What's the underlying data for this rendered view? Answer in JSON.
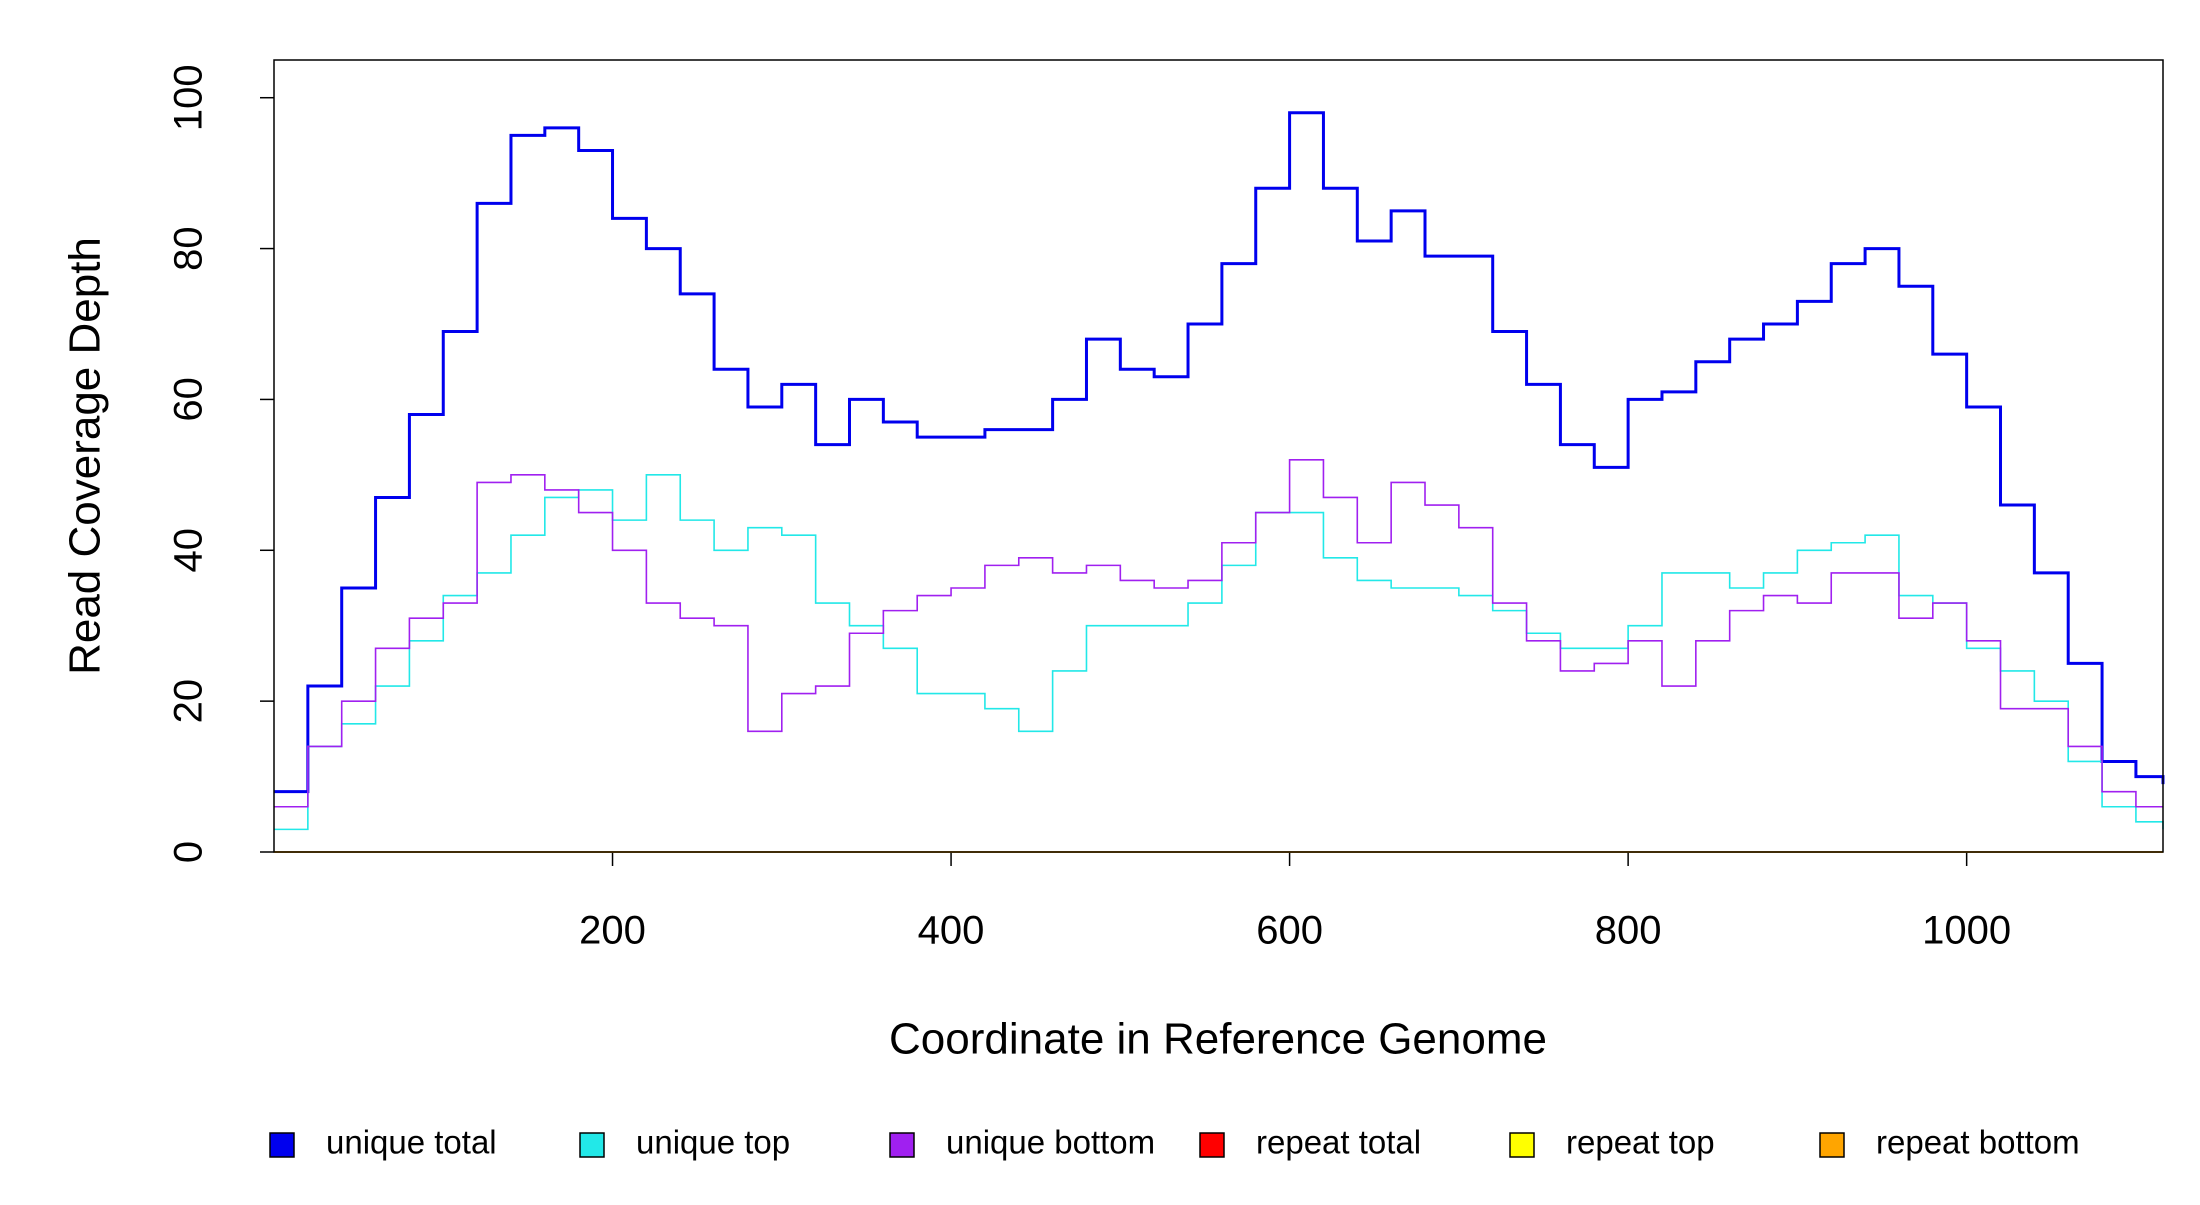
{
  "chart_data": {
    "type": "line",
    "step": true,
    "xlabel": "Coordinate in Reference Genome",
    "ylabel": "Read Coverage Depth",
    "x": [
      0,
      20,
      40,
      60,
      80,
      100,
      120,
      140,
      160,
      180,
      200,
      220,
      240,
      260,
      280,
      300,
      320,
      340,
      360,
      380,
      400,
      420,
      440,
      460,
      480,
      500,
      520,
      540,
      560,
      580,
      600,
      620,
      640,
      660,
      680,
      700,
      720,
      740,
      760,
      780,
      800,
      820,
      840,
      860,
      880,
      900,
      920,
      940,
      960,
      980,
      1000,
      1020,
      1040,
      1060,
      1080,
      1100,
      1116
    ],
    "series": [
      {
        "name": "unique total",
        "color": "#0000ee",
        "width": 3,
        "values": [
          8,
          22,
          35,
          47,
          58,
          69,
          86,
          95,
          96,
          93,
          84,
          80,
          74,
          64,
          59,
          62,
          54,
          60,
          57,
          55,
          55,
          56,
          56,
          60,
          68,
          64,
          63,
          70,
          78,
          88,
          98,
          88,
          81,
          85,
          79,
          79,
          69,
          62,
          54,
          51,
          60,
          61,
          65,
          68,
          70,
          73,
          78,
          80,
          75,
          66,
          59,
          46,
          37,
          25,
          12,
          10,
          9
        ]
      },
      {
        "name": "unique top",
        "color": "#22e8e8",
        "width": 1.6,
        "values": [
          3,
          14,
          17,
          22,
          28,
          34,
          37,
          42,
          47,
          48,
          44,
          50,
          44,
          40,
          43,
          42,
          33,
          30,
          27,
          21,
          21,
          19,
          16,
          24,
          30,
          30,
          30,
          33,
          38,
          45,
          45,
          39,
          36,
          35,
          35,
          34,
          32,
          29,
          27,
          27,
          30,
          37,
          37,
          35,
          37,
          40,
          41,
          42,
          34,
          33,
          27,
          24,
          20,
          12,
          6,
          4,
          3
        ]
      },
      {
        "name": "unique bottom",
        "color": "#a020f0",
        "width": 1.6,
        "values": [
          6,
          14,
          20,
          27,
          31,
          33,
          49,
          50,
          48,
          45,
          40,
          33,
          31,
          30,
          16,
          21,
          22,
          29,
          32,
          34,
          35,
          38,
          39,
          37,
          38,
          36,
          35,
          36,
          41,
          45,
          52,
          47,
          41,
          49,
          46,
          43,
          33,
          28,
          24,
          25,
          28,
          22,
          28,
          32,
          34,
          33,
          37,
          37,
          31,
          33,
          28,
          19,
          19,
          14,
          8,
          6,
          6
        ]
      },
      {
        "name": "repeat total",
        "color": "#ff0000",
        "width": 1.6,
        "values": [
          0,
          0,
          0,
          0,
          0,
          0,
          0,
          0,
          0,
          0,
          0,
          0,
          0,
          0,
          0,
          0,
          0,
          0,
          0,
          0,
          0,
          0,
          0,
          0,
          0,
          0,
          0,
          0,
          0,
          0,
          0,
          0,
          0,
          0,
          0,
          0,
          0,
          0,
          0,
          0,
          0,
          0,
          0,
          0,
          0,
          0,
          0,
          0,
          0,
          0,
          0,
          0,
          0,
          0,
          0,
          0,
          0
        ]
      },
      {
        "name": "repeat top",
        "color": "#ffff00",
        "width": 1.6,
        "values": [
          0,
          0,
          0,
          0,
          0,
          0,
          0,
          0,
          0,
          0,
          0,
          0,
          0,
          0,
          0,
          0,
          0,
          0,
          0,
          0,
          0,
          0,
          0,
          0,
          0,
          0,
          0,
          0,
          0,
          0,
          0,
          0,
          0,
          0,
          0,
          0,
          0,
          0,
          0,
          0,
          0,
          0,
          0,
          0,
          0,
          0,
          0,
          0,
          0,
          0,
          0,
          0,
          0,
          0,
          0,
          0,
          0
        ]
      },
      {
        "name": "repeat bottom",
        "color": "#ffa500",
        "width": 1.6,
        "values": [
          0,
          0,
          0,
          0,
          0,
          0,
          0,
          0,
          0,
          0,
          0,
          0,
          0,
          0,
          0,
          0,
          0,
          0,
          0,
          0,
          0,
          0,
          0,
          0,
          0,
          0,
          0,
          0,
          0,
          0,
          0,
          0,
          0,
          0,
          0,
          0,
          0,
          0,
          0,
          0,
          0,
          0,
          0,
          0,
          0,
          0,
          0,
          0,
          0,
          0,
          0,
          0,
          0,
          0,
          0,
          0,
          0
        ]
      }
    ],
    "xlim": [
      0,
      1116
    ],
    "xticks": [
      200,
      400,
      600,
      800,
      1000
    ],
    "ylim": [
      0,
      105
    ],
    "yticks": [
      0,
      20,
      40,
      60,
      80,
      100
    ],
    "legend_position": "bottom"
  }
}
